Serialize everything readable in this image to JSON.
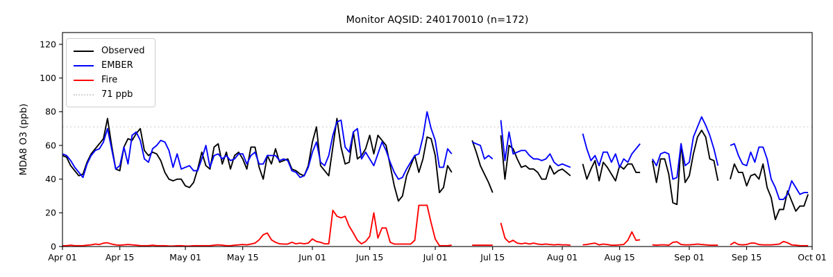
{
  "chart_data": {
    "type": "line",
    "title": "Monitor AQSID: 240170010 (n=172)",
    "ylabel": "MDA8 O3 (ppb)",
    "xlabel": "",
    "grid": false,
    "legend_position": "upper left",
    "ylim": [
      0,
      127
    ],
    "yticks": [
      0,
      20,
      40,
      60,
      80,
      100,
      120
    ],
    "n_days": 183,
    "x_range": [
      "Apr 01",
      "Oct 01"
    ],
    "xtick_labels": [
      "Apr 01",
      "Apr 15",
      "May 01",
      "May 15",
      "Jun 01",
      "Jun 15",
      "Jul 01",
      "Jul 15",
      "Aug 01",
      "Aug 15",
      "Sep 01",
      "Sep 15",
      "Oct 01"
    ],
    "xtick_days": [
      0,
      14,
      30,
      44,
      61,
      75,
      91,
      105,
      122,
      136,
      153,
      167,
      183
    ],
    "threshold": {
      "value": 71,
      "label": "71 ppb",
      "color": "#d3d3d3"
    },
    "series": [
      {
        "name": "Observed",
        "color": "#000000",
        "values": [
          54,
          53,
          48,
          45,
          42,
          43,
          50,
          55,
          58,
          61,
          64,
          76,
          60,
          46,
          45,
          59,
          64,
          63,
          67,
          70,
          57,
          54,
          56,
          55,
          51,
          44,
          40,
          39,
          40,
          40,
          36,
          35,
          38,
          46,
          56,
          48,
          46,
          59,
          61,
          49,
          56,
          46,
          54,
          56,
          52,
          46,
          59,
          59,
          47,
          40,
          54,
          49,
          58,
          50,
          51,
          52,
          46,
          45,
          43,
          42,
          48,
          62,
          71,
          48,
          45,
          42,
          59,
          76,
          59,
          49,
          50,
          68,
          52,
          54,
          58,
          66,
          55,
          66,
          63,
          60,
          48,
          36,
          27,
          30,
          42,
          48,
          54,
          44,
          52,
          65,
          64,
          54,
          32,
          35,
          48,
          44,
          null,
          null,
          null,
          null,
          63,
          56,
          48,
          43,
          38,
          32,
          null,
          66,
          40,
          60,
          58,
          52,
          47,
          48,
          46,
          46,
          44,
          40,
          40,
          48,
          43,
          45,
          46,
          44,
          42,
          null,
          null,
          49,
          40,
          46,
          51,
          39,
          50,
          47,
          43,
          39,
          48,
          46,
          49,
          49,
          44,
          44,
          null,
          null,
          51,
          38,
          52,
          52,
          43,
          26,
          25,
          61,
          38,
          42,
          55,
          65,
          69,
          65,
          52,
          51,
          39,
          null,
          null,
          40,
          49,
          44,
          44,
          36,
          42,
          43,
          40,
          49,
          35,
          29,
          16,
          22,
          22,
          33,
          27,
          21,
          24,
          24,
          31
        ]
      },
      {
        "name": "EMBER",
        "color": "#0000ff",
        "values": [
          55,
          54,
          51,
          47,
          44,
          41,
          49,
          54,
          57,
          58,
          62,
          70,
          58,
          46,
          48,
          59,
          49,
          66,
          68,
          63,
          52,
          50,
          58,
          60,
          63,
          62,
          57,
          47,
          55,
          46,
          47,
          48,
          45,
          45,
          52,
          60,
          47,
          54,
          55,
          52,
          54,
          51,
          52,
          55,
          55,
          49,
          54,
          56,
          49,
          49,
          54,
          54,
          54,
          51,
          52,
          51,
          45,
          44,
          41,
          42,
          47,
          56,
          62,
          50,
          48,
          54,
          66,
          74,
          75,
          59,
          56,
          68,
          70,
          52,
          56,
          52,
          48,
          55,
          62,
          57,
          50,
          44,
          40,
          41,
          46,
          50,
          54,
          55,
          65,
          80,
          70,
          63,
          47,
          47,
          58,
          55,
          null,
          null,
          null,
          null,
          62,
          61,
          60,
          52,
          54,
          52,
          null,
          75,
          51,
          68,
          55,
          56,
          57,
          57,
          54,
          52,
          52,
          51,
          52,
          55,
          50,
          48,
          49,
          48,
          47,
          null,
          null,
          67,
          58,
          51,
          54,
          48,
          56,
          56,
          50,
          55,
          47,
          52,
          50,
          55,
          58,
          61,
          null,
          null,
          52,
          48,
          55,
          56,
          55,
          40,
          41,
          61,
          48,
          50,
          65,
          71,
          77,
          72,
          66,
          58,
          48,
          null,
          null,
          60,
          61,
          54,
          49,
          48,
          56,
          50,
          59,
          59,
          52,
          40,
          35,
          28,
          28,
          31,
          39,
          35,
          31,
          32,
          32
        ]
      },
      {
        "name": "Fire",
        "color": "#ff0000",
        "values": [
          0.5,
          0.5,
          0.8,
          0.5,
          0.5,
          0.5,
          0.8,
          1,
          1.5,
          1.2,
          2,
          2.2,
          1.5,
          1,
          0.8,
          1,
          1.2,
          1,
          0.8,
          0.5,
          0.5,
          0.5,
          0.8,
          0.5,
          0.5,
          0.5,
          0.3,
          0.3,
          0.5,
          0.5,
          0.3,
          0.3,
          0.5,
          0.5,
          0.5,
          0.5,
          0.5,
          0.8,
          1,
          0.8,
          0.5,
          0.5,
          0.8,
          1,
          1.2,
          1,
          1.5,
          2,
          4,
          7,
          8,
          4,
          2.5,
          1.6,
          1.5,
          1.5,
          2.5,
          1.6,
          2,
          1.6,
          2,
          4.5,
          3,
          2.5,
          1.6,
          1.6,
          21.5,
          18,
          17,
          18,
          12,
          8,
          3.7,
          1.6,
          3,
          6,
          20,
          5,
          11,
          11,
          2.5,
          1.5,
          1.5,
          1.5,
          1.5,
          1.5,
          3.7,
          24.5,
          24.5,
          24.5,
          14,
          4.5,
          0.5,
          0.5,
          0.5,
          0.8,
          null,
          null,
          null,
          null,
          0.8,
          0.8,
          0.8,
          0.8,
          0.8,
          0.8,
          null,
          14,
          5,
          2.5,
          3.7,
          2,
          1.6,
          2,
          1.5,
          2,
          1.5,
          1.2,
          1.5,
          1.2,
          1,
          1.2,
          1,
          1,
          0.8,
          null,
          null,
          1,
          1.2,
          1.7,
          2,
          1,
          1.5,
          1.2,
          0.8,
          0.8,
          1,
          1.2,
          3.7,
          8.7,
          3.7,
          4,
          null,
          null,
          1,
          0.8,
          1,
          1,
          0.8,
          2.5,
          2.8,
          1.2,
          1,
          1,
          1.2,
          1.5,
          1.2,
          1,
          0.8,
          0.8,
          0.8,
          null,
          null,
          1,
          2.5,
          1.2,
          1,
          1.2,
          2,
          2,
          1.2,
          1,
          1,
          1,
          1.2,
          1.5,
          3,
          2.2,
          1,
          0.8,
          0.5,
          0.5,
          0.5
        ]
      }
    ]
  }
}
